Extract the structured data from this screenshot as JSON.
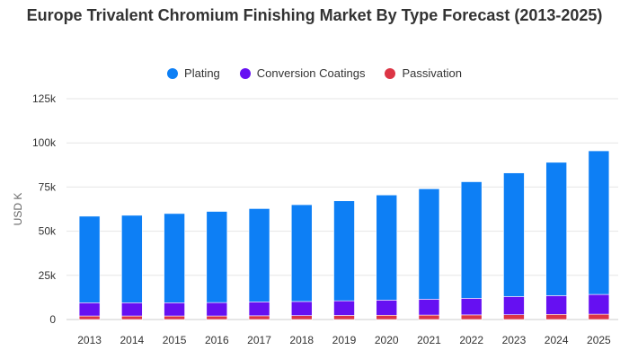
{
  "chart_data": {
    "type": "bar",
    "stacked": true,
    "title": "Europe Trivalent Chromium Finishing Market By Type Forecast (2013-2025)",
    "xlabel": "",
    "ylabel": "USD K",
    "ylim": [
      0,
      125000
    ],
    "yticks": [
      0,
      25000,
      50000,
      75000,
      100000,
      125000
    ],
    "ytick_labels": [
      "0",
      "25k",
      "50k",
      "75k",
      "100k",
      "125k"
    ],
    "grid": true,
    "legend_position": "top-center",
    "categories": [
      "2013",
      "2014",
      "2015",
      "2016",
      "2017",
      "2018",
      "2019",
      "2020",
      "2021",
      "2022",
      "2023",
      "2024",
      "2025"
    ],
    "series": [
      {
        "name": "Passivation",
        "color": "#dc3545",
        "values": [
          2000,
          2000,
          2000,
          2000,
          2100,
          2200,
          2300,
          2400,
          2500,
          2600,
          2700,
          2900,
          3000
        ]
      },
      {
        "name": "Conversion Coatings",
        "color": "#6610f2",
        "values": [
          7500,
          7500,
          7500,
          7600,
          7900,
          8000,
          8300,
          8600,
          9000,
          9400,
          10300,
          10600,
          11200
        ]
      },
      {
        "name": "Plating",
        "color": "#0d7ff5",
        "values": [
          49000,
          49500,
          50500,
          51600,
          52800,
          54800,
          56600,
          59500,
          62500,
          66000,
          70000,
          75500,
          81300
        ]
      }
    ]
  },
  "legend": {
    "items": [
      {
        "label": "Plating",
        "color": "#0d7ff5"
      },
      {
        "label": "Conversion Coatings",
        "color": "#6610f2"
      },
      {
        "label": "Passivation",
        "color": "#dc3545"
      }
    ]
  }
}
